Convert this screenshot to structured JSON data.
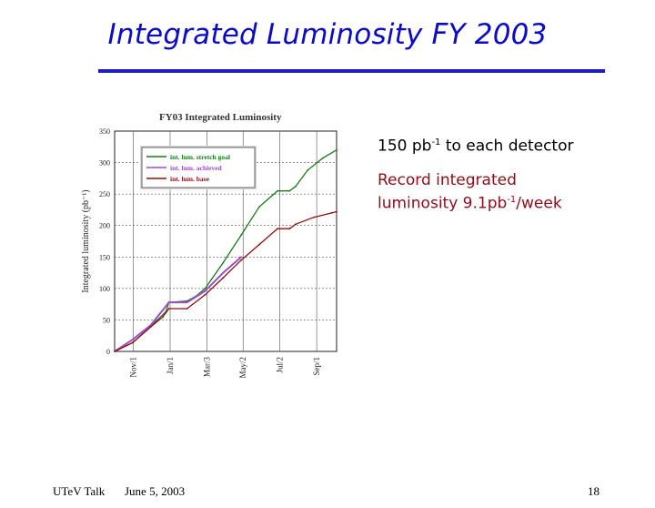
{
  "slide": {
    "title": "Integrated Luminosity FY 2003",
    "bullets": [
      {
        "prefix": "150 pb",
        "sup": "-1",
        "suffix": " to each detector"
      },
      {
        "line1": "Record integrated",
        "prefix": "luminosity 9.1pb",
        "sup": "-1",
        "suffix": "/week"
      }
    ],
    "footer": {
      "left": "UTeV Talk",
      "date": "June 5, 2003",
      "page": "18"
    },
    "colors": {
      "title": "#0a0ac8",
      "rule": "#1c1cc0",
      "bullet2": "#8b0e18"
    }
  },
  "chart_data": {
    "type": "line",
    "title": "FY03 Integrated Luminosity",
    "ylabel": "Integrated luminosity (pb⁻¹)",
    "xlabel": "",
    "ylim": [
      0,
      350
    ],
    "xlim": [
      0,
      368
    ],
    "yticks": [
      0,
      50,
      100,
      150,
      200,
      250,
      300,
      350
    ],
    "xtick_labels": [
      {
        "label": "Nov/1",
        "x": 31
      },
      {
        "label": "Jan/1",
        "x": 92
      },
      {
        "label": "Mar/3",
        "x": 153
      },
      {
        "label": "May/2",
        "x": 213
      },
      {
        "label": "Jul/2",
        "x": 274
      },
      {
        "label": "Sep/1",
        "x": 335
      }
    ],
    "grid": true,
    "legend_position": "top-left",
    "series": [
      {
        "name": "int. lum. stretch goal",
        "color": "#1a7a1a",
        "points": [
          [
            0,
            0
          ],
          [
            30,
            14
          ],
          [
            60,
            40
          ],
          [
            85,
            63
          ],
          [
            90,
            78
          ],
          [
            120,
            80
          ],
          [
            135,
            88
          ],
          [
            150,
            100
          ],
          [
            180,
            141
          ],
          [
            210,
            185
          ],
          [
            240,
            230
          ],
          [
            270,
            255
          ],
          [
            290,
            255
          ],
          [
            300,
            262
          ],
          [
            320,
            288
          ],
          [
            345,
            307
          ],
          [
            368,
            320
          ]
        ]
      },
      {
        "name": "int. lum. achieved",
        "color": "#9a4fc8",
        "points": [
          [
            0,
            0
          ],
          [
            30,
            19
          ],
          [
            60,
            42
          ],
          [
            85,
            72
          ],
          [
            90,
            78
          ],
          [
            120,
            78
          ],
          [
            150,
            96
          ],
          [
            180,
            125
          ],
          [
            210,
            150
          ]
        ]
      },
      {
        "name": "int. lum. base",
        "color": "#8b1010",
        "points": [
          [
            0,
            0
          ],
          [
            30,
            14
          ],
          [
            60,
            39
          ],
          [
            80,
            55
          ],
          [
            90,
            68
          ],
          [
            120,
            68
          ],
          [
            150,
            90
          ],
          [
            180,
            117
          ],
          [
            210,
            145
          ],
          [
            240,
            170
          ],
          [
            270,
            195
          ],
          [
            290,
            195
          ],
          [
            300,
            202
          ],
          [
            330,
            213
          ],
          [
            360,
            220
          ],
          [
            368,
            222
          ]
        ]
      }
    ]
  }
}
